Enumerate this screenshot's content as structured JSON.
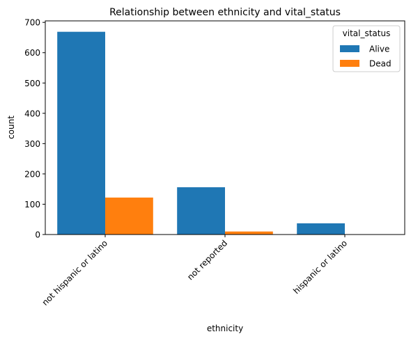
{
  "chart_data": {
    "type": "bar",
    "title": "Relationship between ethnicity and vital_status",
    "xlabel": "ethnicity",
    "ylabel": "count",
    "categories": [
      "not hispanic or latino",
      "not reported",
      "hispanic or latino"
    ],
    "series": [
      {
        "name": "Alive",
        "color": "#1f77b4",
        "values": [
          669,
          156,
          37
        ]
      },
      {
        "name": "Dead",
        "color": "#ff7f0e",
        "values": [
          122,
          10,
          1
        ]
      }
    ],
    "ylim": [
      0,
      705
    ],
    "yticks": [
      0,
      100,
      200,
      300,
      400,
      500,
      600,
      700
    ],
    "legend": {
      "title": "vital_status",
      "position": "top-right"
    },
    "grid": false
  }
}
